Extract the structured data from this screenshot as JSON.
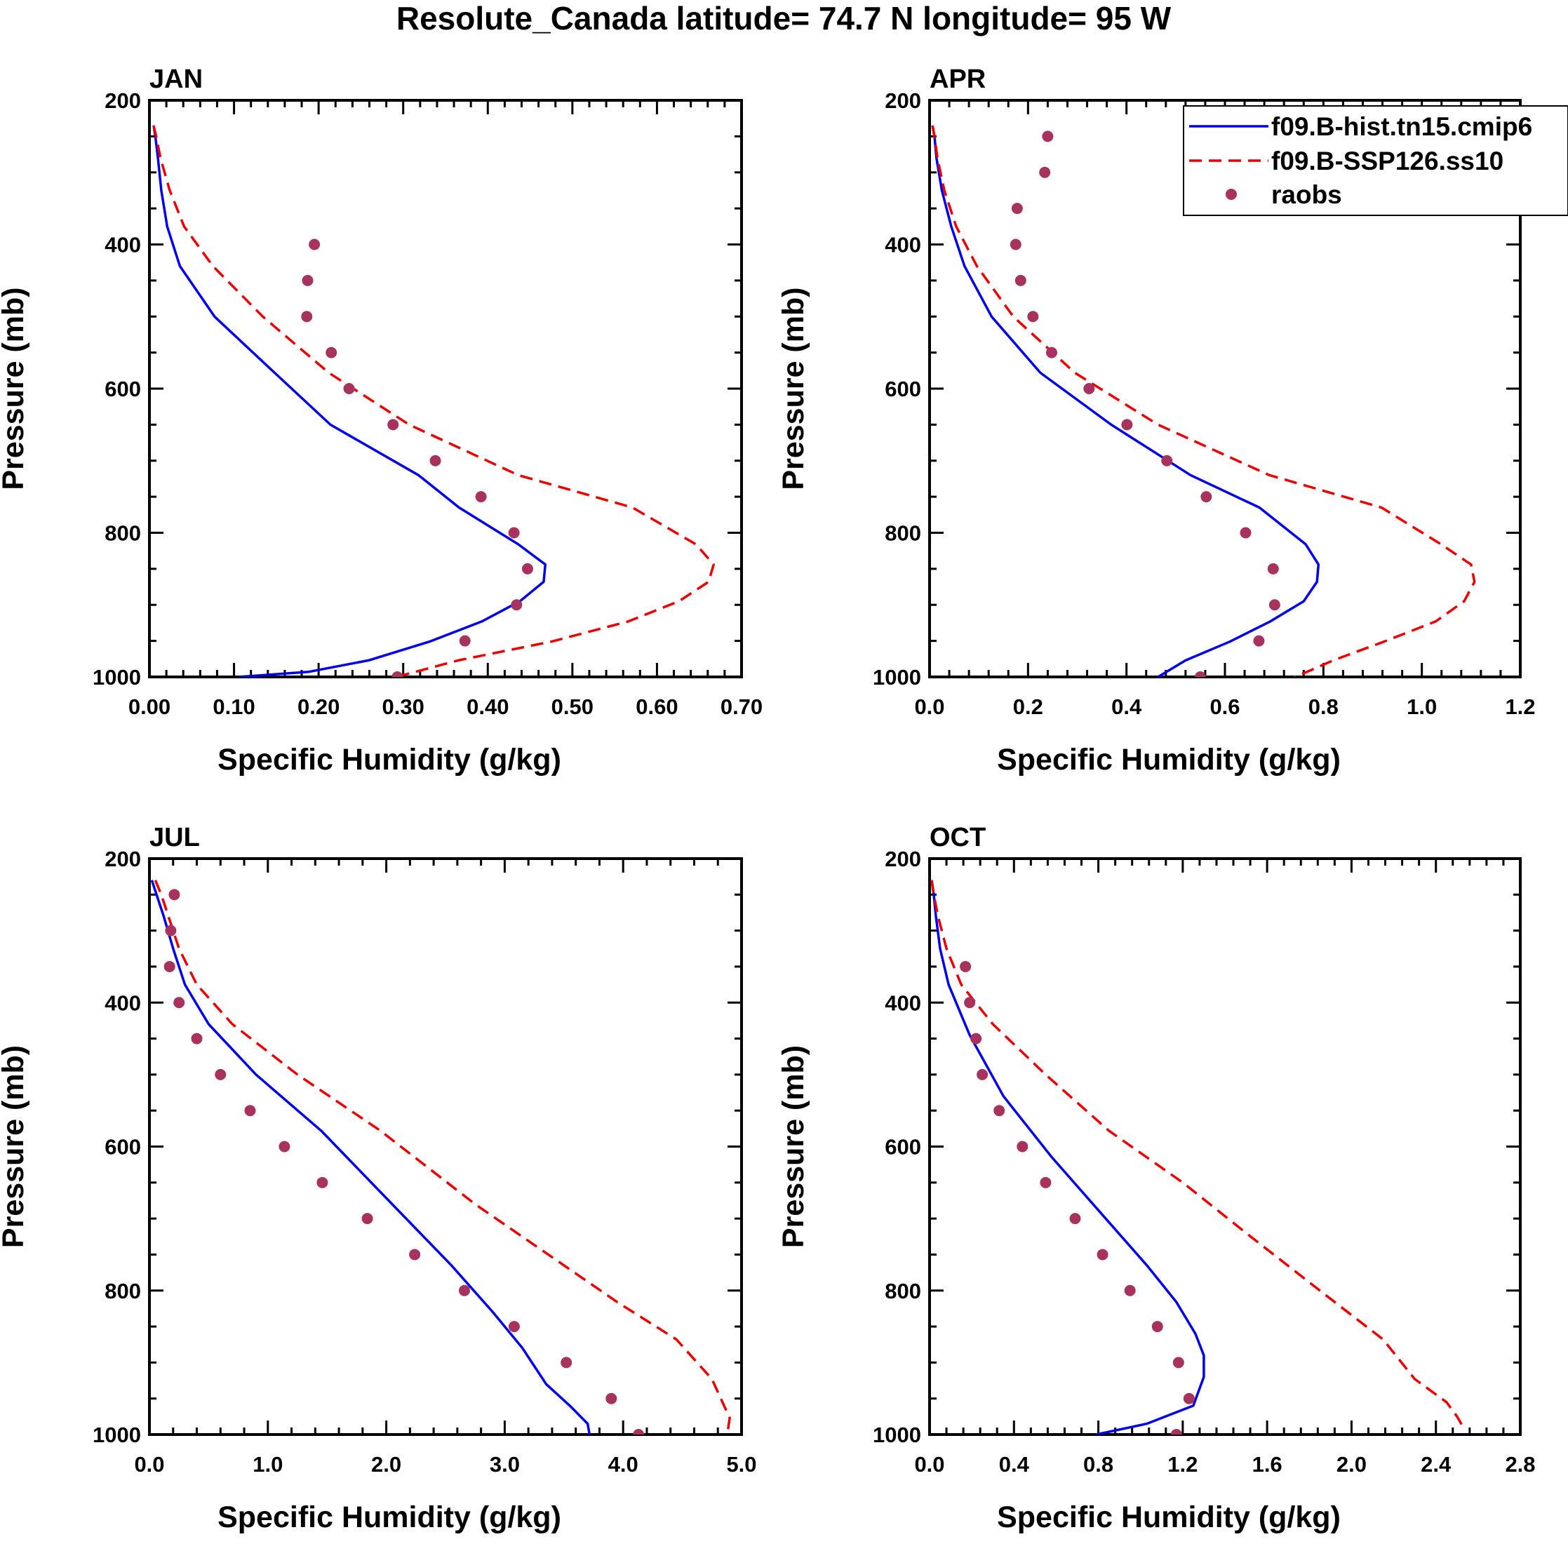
{
  "title": "Resolute_Canada  latitude= 74.7 N longitude= 95 W",
  "colors": {
    "hist": "#0000ee",
    "ssp": "#ee0000",
    "raobs": "#a8325e",
    "axis": "#000000"
  },
  "legend": {
    "entries": [
      {
        "label": "f09.B-hist.tn15.cmip6",
        "style": "solid",
        "color": "#0000ee"
      },
      {
        "label": "f09.B-SSP126.ss10",
        "style": "dashed",
        "color": "#ee0000"
      },
      {
        "label": "raobs",
        "style": "marker",
        "color": "#a8325e"
      }
    ]
  },
  "chart_data": [
    {
      "type": "line",
      "panel": "JAN",
      "title": "JAN",
      "xlabel": "Specific Humidity (g/kg)",
      "ylabel": "Pressure (mb)",
      "xlim": [
        0.0,
        0.7
      ],
      "ylim": [
        200,
        1000
      ],
      "y_reversed": true,
      "xticks": [
        0.0,
        0.1,
        0.2,
        0.3,
        0.4,
        0.5,
        0.6,
        0.7
      ],
      "xtick_labels": [
        "0.00",
        "0.10",
        "0.20",
        "0.30",
        "0.40",
        "0.50",
        "0.60",
        "0.70"
      ],
      "yticks": [
        200,
        400,
        600,
        800,
        1000
      ],
      "ytick_labels": [
        "200",
        "400",
        "600",
        "800",
        "1000"
      ],
      "series": [
        {
          "name": "f09.B-hist.tn15.cmip6",
          "x": [
            0.005,
            0.007,
            0.01,
            0.014,
            0.021,
            0.036,
            0.077,
            0.148,
            0.214,
            0.318,
            0.366,
            0.436,
            0.468,
            0.466,
            0.438,
            0.393,
            0.331,
            0.259,
            0.188,
            0.105
          ],
          "y": [
            235,
            250,
            280,
            325,
            375,
            430,
            500,
            578,
            650,
            720,
            765,
            816,
            844,
            868,
            895,
            923,
            951,
            977,
            993,
            1000
          ]
        },
        {
          "name": "f09.B-SSP126.ss10",
          "x": [
            0.005,
            0.008,
            0.013,
            0.024,
            0.041,
            0.075,
            0.134,
            0.212,
            0.307,
            0.436,
            0.571,
            0.646,
            0.667,
            0.661,
            0.626,
            0.566,
            0.475,
            0.365,
            0.292
          ],
          "y": [
            235,
            250,
            280,
            325,
            375,
            430,
            500,
            578,
            650,
            720,
            765,
            816,
            844,
            868,
            895,
            923,
            951,
            977,
            1000
          ]
        },
        {
          "name": "raobs",
          "x": [
            0.195,
            0.187,
            0.186,
            0.215,
            0.236,
            0.288,
            0.338,
            0.392,
            0.431,
            0.447,
            0.434,
            0.373,
            0.293
          ],
          "y": [
            400,
            450,
            500,
            550,
            600,
            650,
            700,
            750,
            800,
            850,
            900,
            950,
            1000
          ]
        }
      ]
    },
    {
      "type": "line",
      "panel": "APR",
      "title": "APR",
      "xlabel": "Specific Humidity (g/kg)",
      "ylabel": "Pressure (mb)",
      "xlim": [
        0.0,
        1.2
      ],
      "ylim": [
        200,
        1000
      ],
      "y_reversed": true,
      "xticks": [
        0.0,
        0.2,
        0.4,
        0.6,
        0.8,
        1.0,
        1.2
      ],
      "xtick_labels": [
        "0.0",
        "0.2",
        "0.4",
        "0.6",
        "0.8",
        "1.0",
        "1.2"
      ],
      "yticks": [
        200,
        400,
        600,
        800,
        1000
      ],
      "ytick_labels": [
        "200",
        "400",
        "600",
        "800",
        "1000"
      ],
      "series": [
        {
          "name": "f09.B-hist.tn15.cmip6",
          "x": [
            0.006,
            0.01,
            0.014,
            0.025,
            0.044,
            0.071,
            0.126,
            0.225,
            0.369,
            0.53,
            0.67,
            0.764,
            0.79,
            0.787,
            0.76,
            0.692,
            0.61,
            0.52,
            0.452
          ],
          "y": [
            235,
            250,
            280,
            325,
            375,
            430,
            500,
            578,
            650,
            720,
            765,
            816,
            844,
            868,
            895,
            923,
            951,
            977,
            1005
          ]
        },
        {
          "name": "f09.B-SSP126.ss10",
          "x": [
            0.006,
            0.01,
            0.016,
            0.03,
            0.054,
            0.096,
            0.17,
            0.295,
            0.464,
            0.69,
            0.918,
            1.039,
            1.1,
            1.107,
            1.086,
            1.028,
            0.923,
            0.82,
            0.733
          ],
          "y": [
            235,
            250,
            280,
            325,
            375,
            430,
            500,
            578,
            650,
            720,
            765,
            816,
            844,
            868,
            895,
            923,
            951,
            977,
            1003
          ]
        },
        {
          "name": "raobs",
          "x": [
            0.24,
            0.234,
            0.178,
            0.175,
            0.185,
            0.21,
            0.248,
            0.324,
            0.401,
            0.482,
            0.562,
            0.642,
            0.698,
            0.701,
            0.669,
            0.55
          ],
          "y": [
            250,
            300,
            350,
            400,
            450,
            500,
            550,
            600,
            650,
            700,
            750,
            800,
            850,
            900,
            950,
            1000
          ]
        }
      ]
    },
    {
      "type": "line",
      "panel": "JUL",
      "title": "JUL",
      "xlabel": "Specific Humidity (g/kg)",
      "ylabel": "Pressure (mb)",
      "xlim": [
        0.0,
        5.0
      ],
      "ylim": [
        200,
        1000
      ],
      "y_reversed": true,
      "xticks": [
        0.0,
        1.0,
        2.0,
        3.0,
        4.0,
        5.0
      ],
      "xtick_labels": [
        "0.0",
        "1.0",
        "2.0",
        "3.0",
        "4.0",
        "5.0"
      ],
      "yticks": [
        200,
        400,
        600,
        800,
        1000
      ],
      "ytick_labels": [
        "200",
        "400",
        "600",
        "800",
        "1000"
      ],
      "series": [
        {
          "name": "f09.B-hist.tn15.cmip6",
          "x": [
            0.02,
            0.06,
            0.12,
            0.2,
            0.3,
            0.5,
            0.9,
            1.45,
            2.05,
            2.55,
            2.9,
            3.15,
            3.35,
            3.55,
            3.7,
            3.72
          ],
          "y": [
            230,
            250,
            280,
            325,
            375,
            430,
            500,
            578,
            680,
            765,
            830,
            880,
            930,
            960,
            985,
            1003
          ]
        },
        {
          "name": "f09.B-SSP126.ss10",
          "x": [
            0.05,
            0.1,
            0.16,
            0.25,
            0.4,
            0.7,
            1.25,
            1.95,
            2.75,
            3.5,
            3.95,
            4.45,
            4.75,
            4.9,
            4.88
          ],
          "y": [
            230,
            250,
            280,
            325,
            375,
            430,
            500,
            578,
            680,
            765,
            816,
            868,
            923,
            977,
            1000
          ]
        },
        {
          "name": "raobs",
          "x": [
            0.21,
            0.18,
            0.17,
            0.25,
            0.4,
            0.6,
            0.85,
            1.14,
            1.46,
            1.84,
            2.24,
            2.66,
            3.08,
            3.52,
            3.9,
            4.13
          ],
          "y": [
            250,
            300,
            350,
            400,
            450,
            500,
            550,
            600,
            650,
            700,
            750,
            800,
            850,
            900,
            950,
            1000
          ]
        }
      ]
    },
    {
      "type": "line",
      "panel": "OCT",
      "title": "OCT",
      "xlabel": "Specific Humidity (g/kg)",
      "ylabel": "Pressure (mb)",
      "xlim": [
        0.0,
        2.8
      ],
      "ylim": [
        200,
        1000
      ],
      "y_reversed": true,
      "xticks": [
        0.0,
        0.4,
        0.8,
        1.2,
        1.6,
        2.0,
        2.4,
        2.8
      ],
      "xtick_labels": [
        "0.0",
        "0.4",
        "0.8",
        "1.2",
        "1.6",
        "2.0",
        "2.4",
        "2.8"
      ],
      "yticks": [
        200,
        400,
        600,
        800,
        1000
      ],
      "ytick_labels": [
        "200",
        "400",
        "600",
        "800",
        "1000"
      ],
      "series": [
        {
          "name": "f09.B-hist.tn15.cmip6",
          "x": [
            0.01,
            0.02,
            0.03,
            0.05,
            0.09,
            0.19,
            0.35,
            0.58,
            0.85,
            1.03,
            1.17,
            1.26,
            1.3,
            1.3,
            1.25,
            1.03,
            0.79
          ],
          "y": [
            230,
            250,
            280,
            325,
            375,
            445,
            530,
            615,
            705,
            765,
            816,
            860,
            890,
            920,
            960,
            985,
            1000
          ]
        },
        {
          "name": "f09.B-SSP126.ss10",
          "x": [
            0.01,
            0.02,
            0.04,
            0.08,
            0.15,
            0.3,
            0.55,
            0.85,
            1.2,
            1.5,
            1.85,
            2.15,
            2.3,
            2.45,
            2.5,
            2.53
          ],
          "y": [
            230,
            250,
            280,
            325,
            375,
            430,
            500,
            578,
            650,
            720,
            800,
            868,
            923,
            955,
            975,
            990
          ]
        },
        {
          "name": "raobs",
          "x": [
            0.17,
            0.19,
            0.22,
            0.25,
            0.33,
            0.44,
            0.55,
            0.69,
            0.82,
            0.95,
            1.08,
            1.18,
            1.23,
            1.17
          ],
          "y": [
            350,
            400,
            450,
            500,
            550,
            600,
            650,
            700,
            750,
            800,
            850,
            900,
            950,
            1000
          ]
        }
      ]
    }
  ]
}
